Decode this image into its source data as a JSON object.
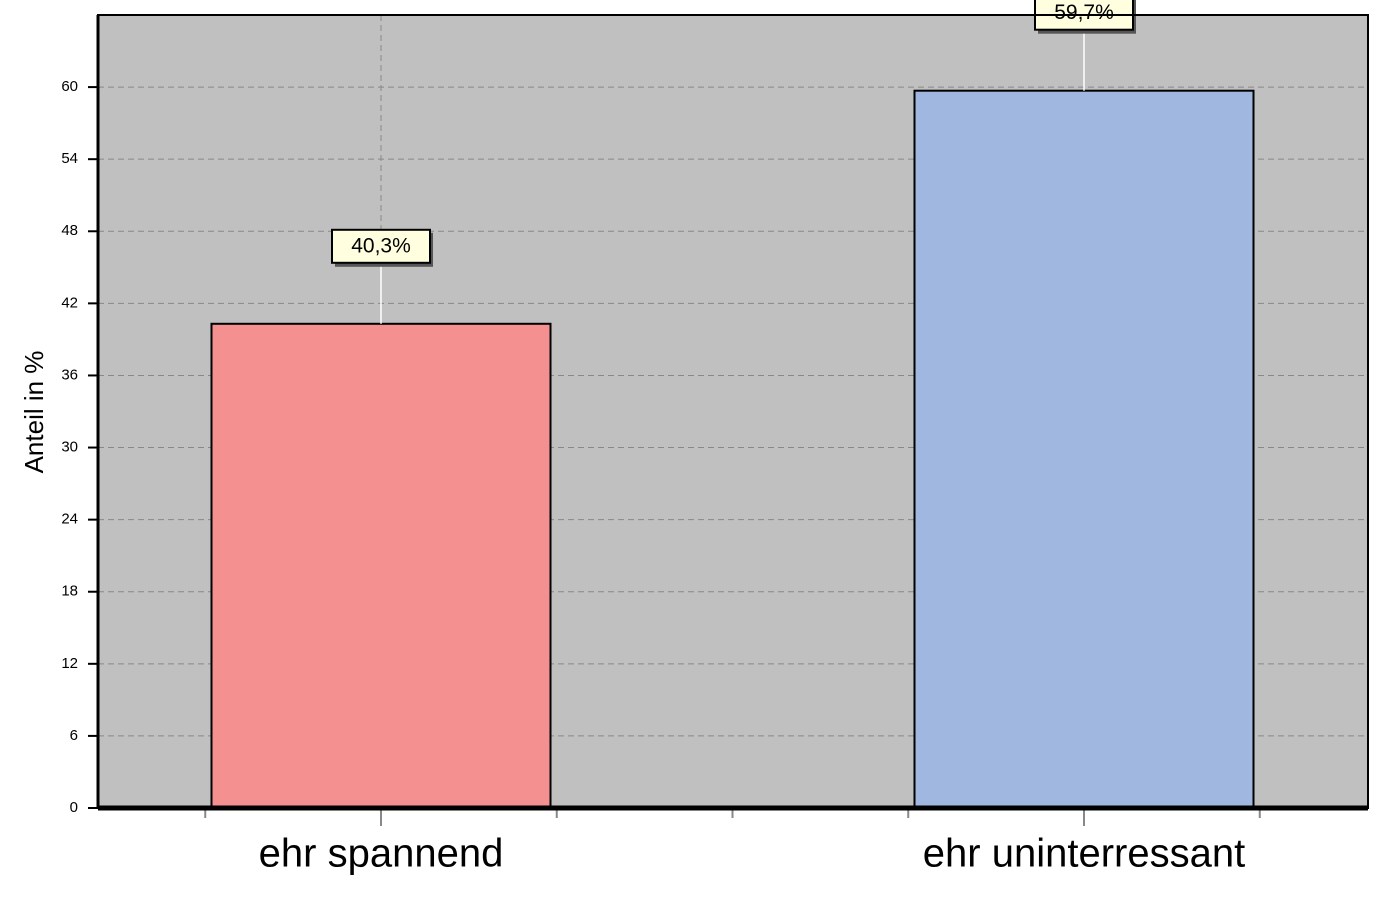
{
  "chart_data": {
    "type": "bar",
    "y_label": "Anteil in %",
    "categories": [
      "ehr spannend",
      "ehr uninterressant"
    ],
    "values": [
      40.3,
      59.7
    ],
    "value_labels": [
      "40,3%",
      "59,7%"
    ],
    "colors": [
      "#f49090",
      "#a0b8e0"
    ],
    "ylim": [
      0,
      66
    ],
    "yticks": [
      0,
      6,
      12,
      18,
      24,
      30,
      36,
      42,
      48,
      54,
      60
    ],
    "grid": true
  }
}
